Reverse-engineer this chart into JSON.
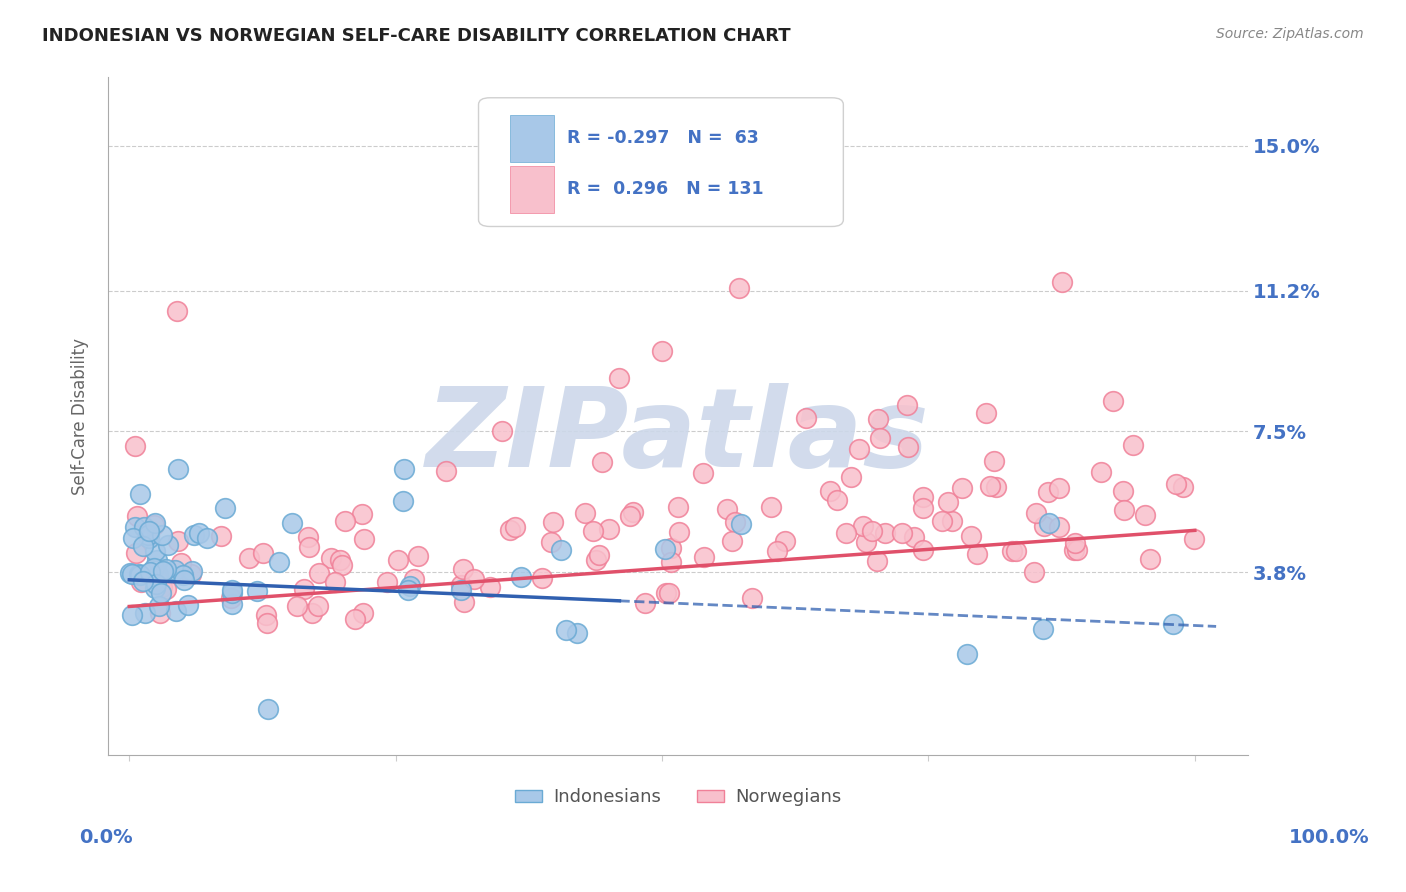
{
  "title": "INDONESIAN VS NORWEGIAN SELF-CARE DISABILITY CORRELATION CHART",
  "source": "Source: ZipAtlas.com",
  "ylabel": "Self-Care Disability",
  "xlim": [
    -0.02,
    1.05
  ],
  "ylim": [
    -0.01,
    0.168
  ],
  "indonesian_R": -0.297,
  "indonesian_N": 63,
  "norwegian_R": 0.296,
  "norwegian_N": 131,
  "indonesian_color": "#a8c8e8",
  "indonesian_edge": "#6aaad4",
  "norwegian_color": "#f8c0cc",
  "norwegian_edge": "#f08098",
  "indonesian_line_color": "#3060b0",
  "norwegian_line_color": "#e0506a",
  "watermark": "ZIPatlas",
  "watermark_color": "#cdd8ea",
  "background_color": "#ffffff",
  "grid_color": "#cccccc",
  "title_fontsize": 13,
  "axis_label_color": "#4472c4",
  "yticks": [
    0.038,
    0.075,
    0.112,
    0.15
  ],
  "ytick_labels": [
    "3.8%",
    "7.5%",
    "11.2%",
    "15.0%"
  ]
}
